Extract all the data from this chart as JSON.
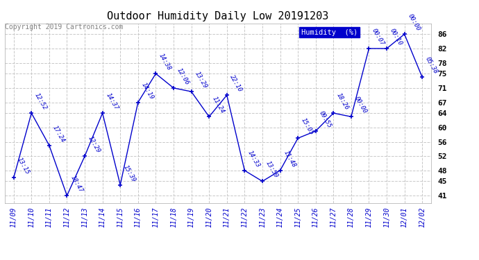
{
  "title": "Outdoor Humidity Daily Low 20191203",
  "copyright": "Copyright 2019 Cartronics.com",
  "legend_label": "Humidity  (%)",
  "background_color": "#ffffff",
  "plot_bg_color": "#ffffff",
  "line_color": "#0000cc",
  "marker_color": "#0000cc",
  "grid_color": "#c8c8c8",
  "text_color": "#0000cc",
  "title_color": "#000000",
  "copyright_color": "#808080",
  "legend_bg": "#0000cc",
  "legend_text_color": "#ffffff",
  "x_labels": [
    "11/09",
    "11/10",
    "11/11",
    "11/12",
    "11/13",
    "11/14",
    "11/15",
    "11/16",
    "11/17",
    "11/18",
    "11/19",
    "11/20",
    "11/21",
    "11/22",
    "11/23",
    "11/24",
    "11/25",
    "11/26",
    "11/27",
    "11/28",
    "11/29",
    "11/30",
    "12/01",
    "12/02"
  ],
  "x_values": [
    0,
    1,
    2,
    3,
    4,
    5,
    6,
    7,
    8,
    9,
    10,
    11,
    12,
    13,
    14,
    15,
    16,
    17,
    18,
    19,
    20,
    21,
    22,
    23
  ],
  "y_values": [
    46,
    64,
    55,
    41,
    52,
    64,
    44,
    67,
    75,
    71,
    70,
    63,
    69,
    48,
    45,
    48,
    57,
    59,
    64,
    63,
    82,
    82,
    86,
    74
  ],
  "point_labels": [
    "13:15",
    "12:52",
    "17:24",
    "18:47",
    "12:29",
    "14:37",
    "15:39",
    "14:19",
    "14:38",
    "12:06",
    "13:29",
    "11:24",
    "22:10",
    "14:33",
    "13:59",
    "11:48",
    "15:05",
    "09:55",
    "18:26",
    "00:00",
    "00:07",
    "00:10",
    "00:00",
    "05:38"
  ],
  "ylim": [
    39,
    89
  ],
  "yticks": [
    41,
    45,
    48,
    52,
    56,
    60,
    64,
    67,
    71,
    75,
    78,
    82,
    86
  ],
  "xlim": [
    -0.5,
    23.5
  ],
  "figsize": [
    6.9,
    3.75
  ],
  "dpi": 100
}
